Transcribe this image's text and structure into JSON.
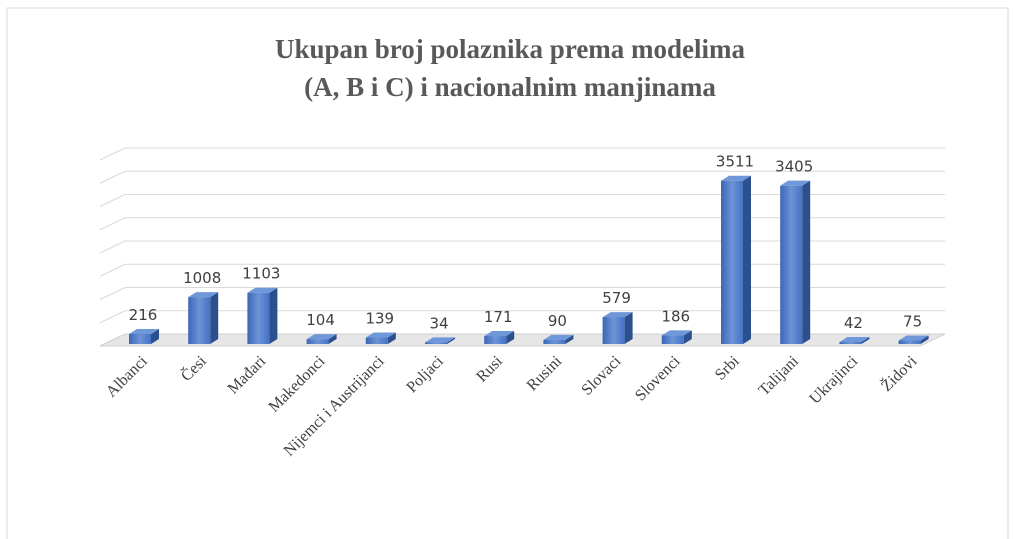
{
  "chart_data": {
    "type": "bar3d",
    "title": [
      "Ukupan broj polaznika prema modelima",
      "(A, B i C) i nacionalnim manjinama"
    ],
    "categories": [
      "Albanci",
      "Česi",
      "Mađari",
      "Makedonci",
      "Nijemci i Austrijanci",
      "Poljaci",
      "Rusi",
      "Rusini",
      "Slovaci",
      "Slovenci",
      "Srbi",
      "Talijani",
      "Ukrajinci",
      "Židovi"
    ],
    "values": [
      216,
      1008,
      1103,
      104,
      139,
      34,
      171,
      90,
      579,
      186,
      3511,
      3405,
      42,
      75
    ],
    "color": "#4472c4",
    "ylim": [
      0,
      4000
    ],
    "yticks": [
      0,
      500,
      1000,
      1500,
      2000,
      2500,
      3000,
      3500,
      4000
    ],
    "grid": true
  }
}
